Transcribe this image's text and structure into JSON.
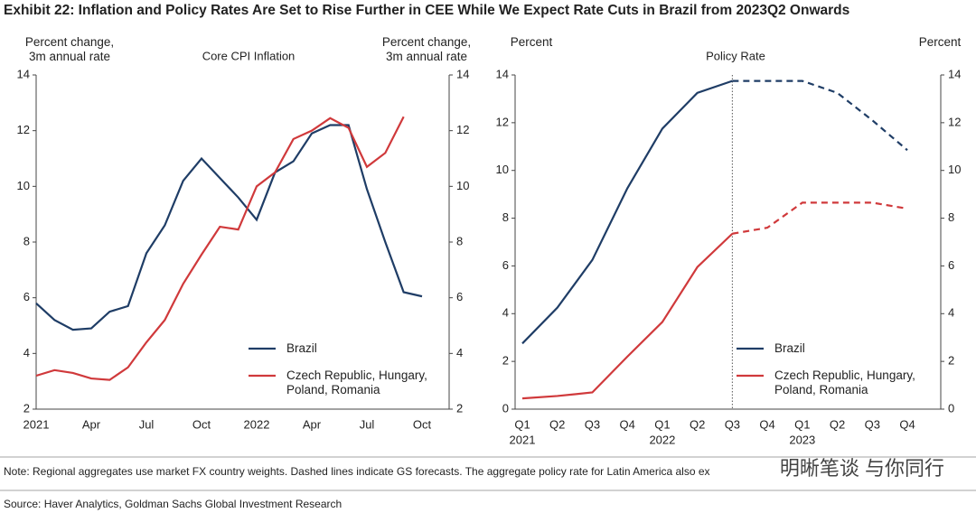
{
  "title": "Exhibit 22: Inflation and Policy Rates Are Set to Rise Further in CEE While We Expect Rate Cuts in Brazil from 2023Q2 Onwards",
  "chart_data": [
    {
      "type": "line",
      "title": "Core CPI Inflation",
      "y_label": "Percent change, 3m annual rate",
      "y2_label": "Percent change, 3m annual rate",
      "categories": [
        "2021",
        null,
        null,
        "Apr",
        null,
        null,
        "Jul",
        null,
        null,
        "Oct",
        null,
        null,
        "2022",
        null,
        null,
        "Apr",
        null,
        null,
        "Jul",
        null,
        null,
        "Oct"
      ],
      "series": [
        {
          "name": "Brazil",
          "color": "#1f3d66",
          "values": [
            5.8,
            5.2,
            4.85,
            4.9,
            5.5,
            5.7,
            7.6,
            8.6,
            10.2,
            11.0,
            10.3,
            9.6,
            8.8,
            10.5,
            10.9,
            11.9,
            12.2,
            12.2,
            9.9,
            8.0,
            6.2,
            6.05
          ]
        },
        {
          "name": "Czech Republic, Hungary, Poland, Romania",
          "color": "#d0393b",
          "values": [
            3.2,
            3.4,
            3.3,
            3.1,
            3.05,
            3.5,
            4.4,
            5.2,
            6.5,
            7.55,
            8.55,
            8.45,
            10.0,
            10.5,
            11.7,
            12.0,
            12.45,
            12.1,
            10.7,
            11.2,
            12.5,
            null
          ]
        }
      ],
      "ylim": [
        2,
        14
      ],
      "yticks": [
        2,
        4,
        6,
        8,
        10,
        12,
        14
      ],
      "y2lim": [
        2,
        14
      ],
      "y2ticks": [
        2,
        4,
        6,
        8,
        10,
        12,
        14
      ],
      "legend": "lower right"
    },
    {
      "type": "line",
      "title": "Policy Rate",
      "y_label": "Percent",
      "y2_label": "Percent",
      "categories": [
        "Q1",
        "Q2",
        "Q3",
        "Q4",
        "Q1",
        "Q2",
        "Q3",
        "Q4",
        "Q1",
        "Q2",
        "Q3",
        "Q4"
      ],
      "years": [
        "2021",
        null,
        null,
        null,
        "2022",
        null,
        null,
        null,
        "2023",
        null,
        null,
        null
      ],
      "dashed_from": 6,
      "series": [
        {
          "name": "Brazil",
          "color": "#1f3d66",
          "values": [
            2.75,
            4.25,
            6.25,
            9.25,
            11.75,
            13.25,
            13.75,
            13.75,
            13.75,
            13.25,
            12.1,
            10.85
          ]
        },
        {
          "name": "Czech Republic, Hungary, Poland, Romania",
          "color": "#d0393b",
          "values": [
            0.45,
            0.55,
            0.7,
            2.2,
            3.65,
            5.95,
            7.35,
            7.6,
            8.65,
            8.65,
            8.65,
            8.4
          ]
        }
      ],
      "ylim": [
        0,
        14
      ],
      "yticks": [
        0,
        2,
        4,
        6,
        8,
        10,
        12,
        14
      ],
      "y2lim": [
        0,
        14
      ],
      "y2ticks": [
        0,
        2,
        4,
        6,
        8,
        10,
        12,
        14
      ],
      "legend": "lower right"
    }
  ],
  "note": "Note: Regional aggregates use market FX country weights. Dashed lines indicate GS forecasts. The aggregate policy rate for Latin America also ex",
  "source": "Source: Haver Analytics, Goldman Sachs Global Investment Research",
  "watermark": "明晰笔谈 与你同行"
}
